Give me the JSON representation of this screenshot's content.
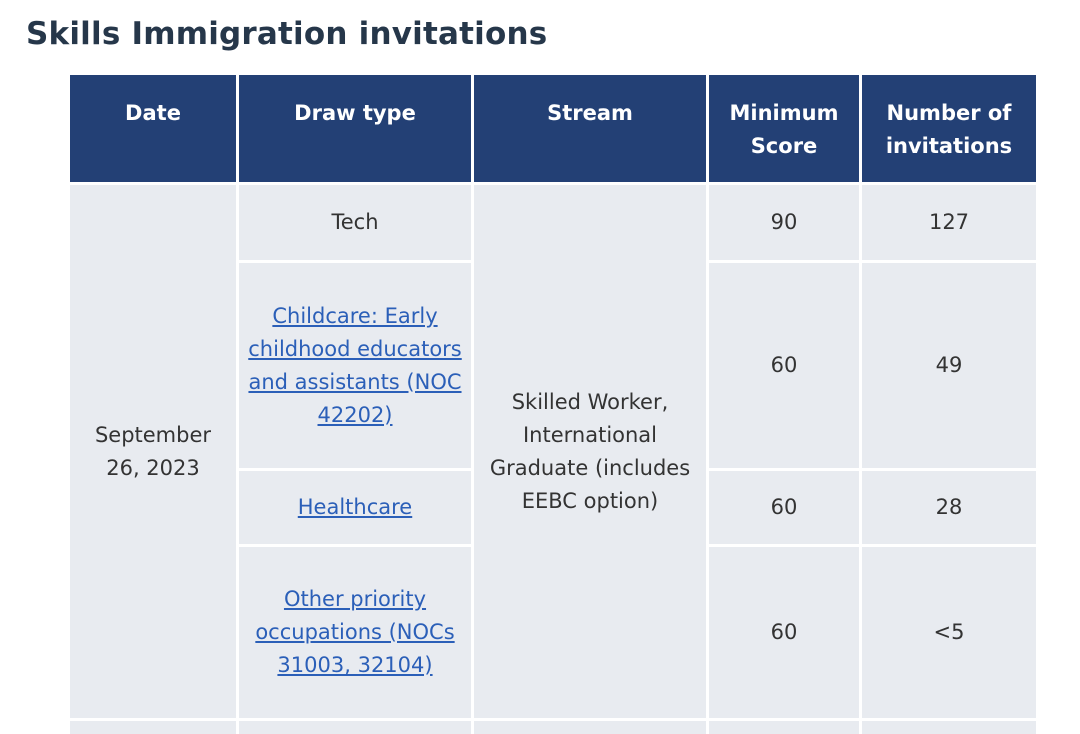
{
  "page": {
    "title": "Skills Immigration invitations"
  },
  "table": {
    "headers": {
      "date": "Date",
      "draw_type": "Draw type",
      "stream": "Stream",
      "min_score": "Minimum Score",
      "invitations": "Number of invitations"
    },
    "group": {
      "date": "September 26, 2023",
      "stream": "Skilled Worker, International Graduate (includes EEBC option)"
    },
    "rows": [
      {
        "draw_type": "Tech",
        "is_link": false,
        "min_score": "90",
        "invitations": "127"
      },
      {
        "draw_type": "Childcare: Early childhood educators and assistants (NOC 42202)",
        "is_link": true,
        "min_score": "60",
        "invitations": "49"
      },
      {
        "draw_type": "Healthcare",
        "is_link": true,
        "min_score": "60",
        "invitations": "28"
      },
      {
        "draw_type": "Other priority occupations (NOCs 31003, 32104)",
        "is_link": true,
        "min_score": "60",
        "invitations": "<5"
      }
    ]
  },
  "colors": {
    "title": "#26374a",
    "header_bg": "#234075",
    "cell_bg": "#e8ebf0",
    "link": "#2b5fb8"
  }
}
